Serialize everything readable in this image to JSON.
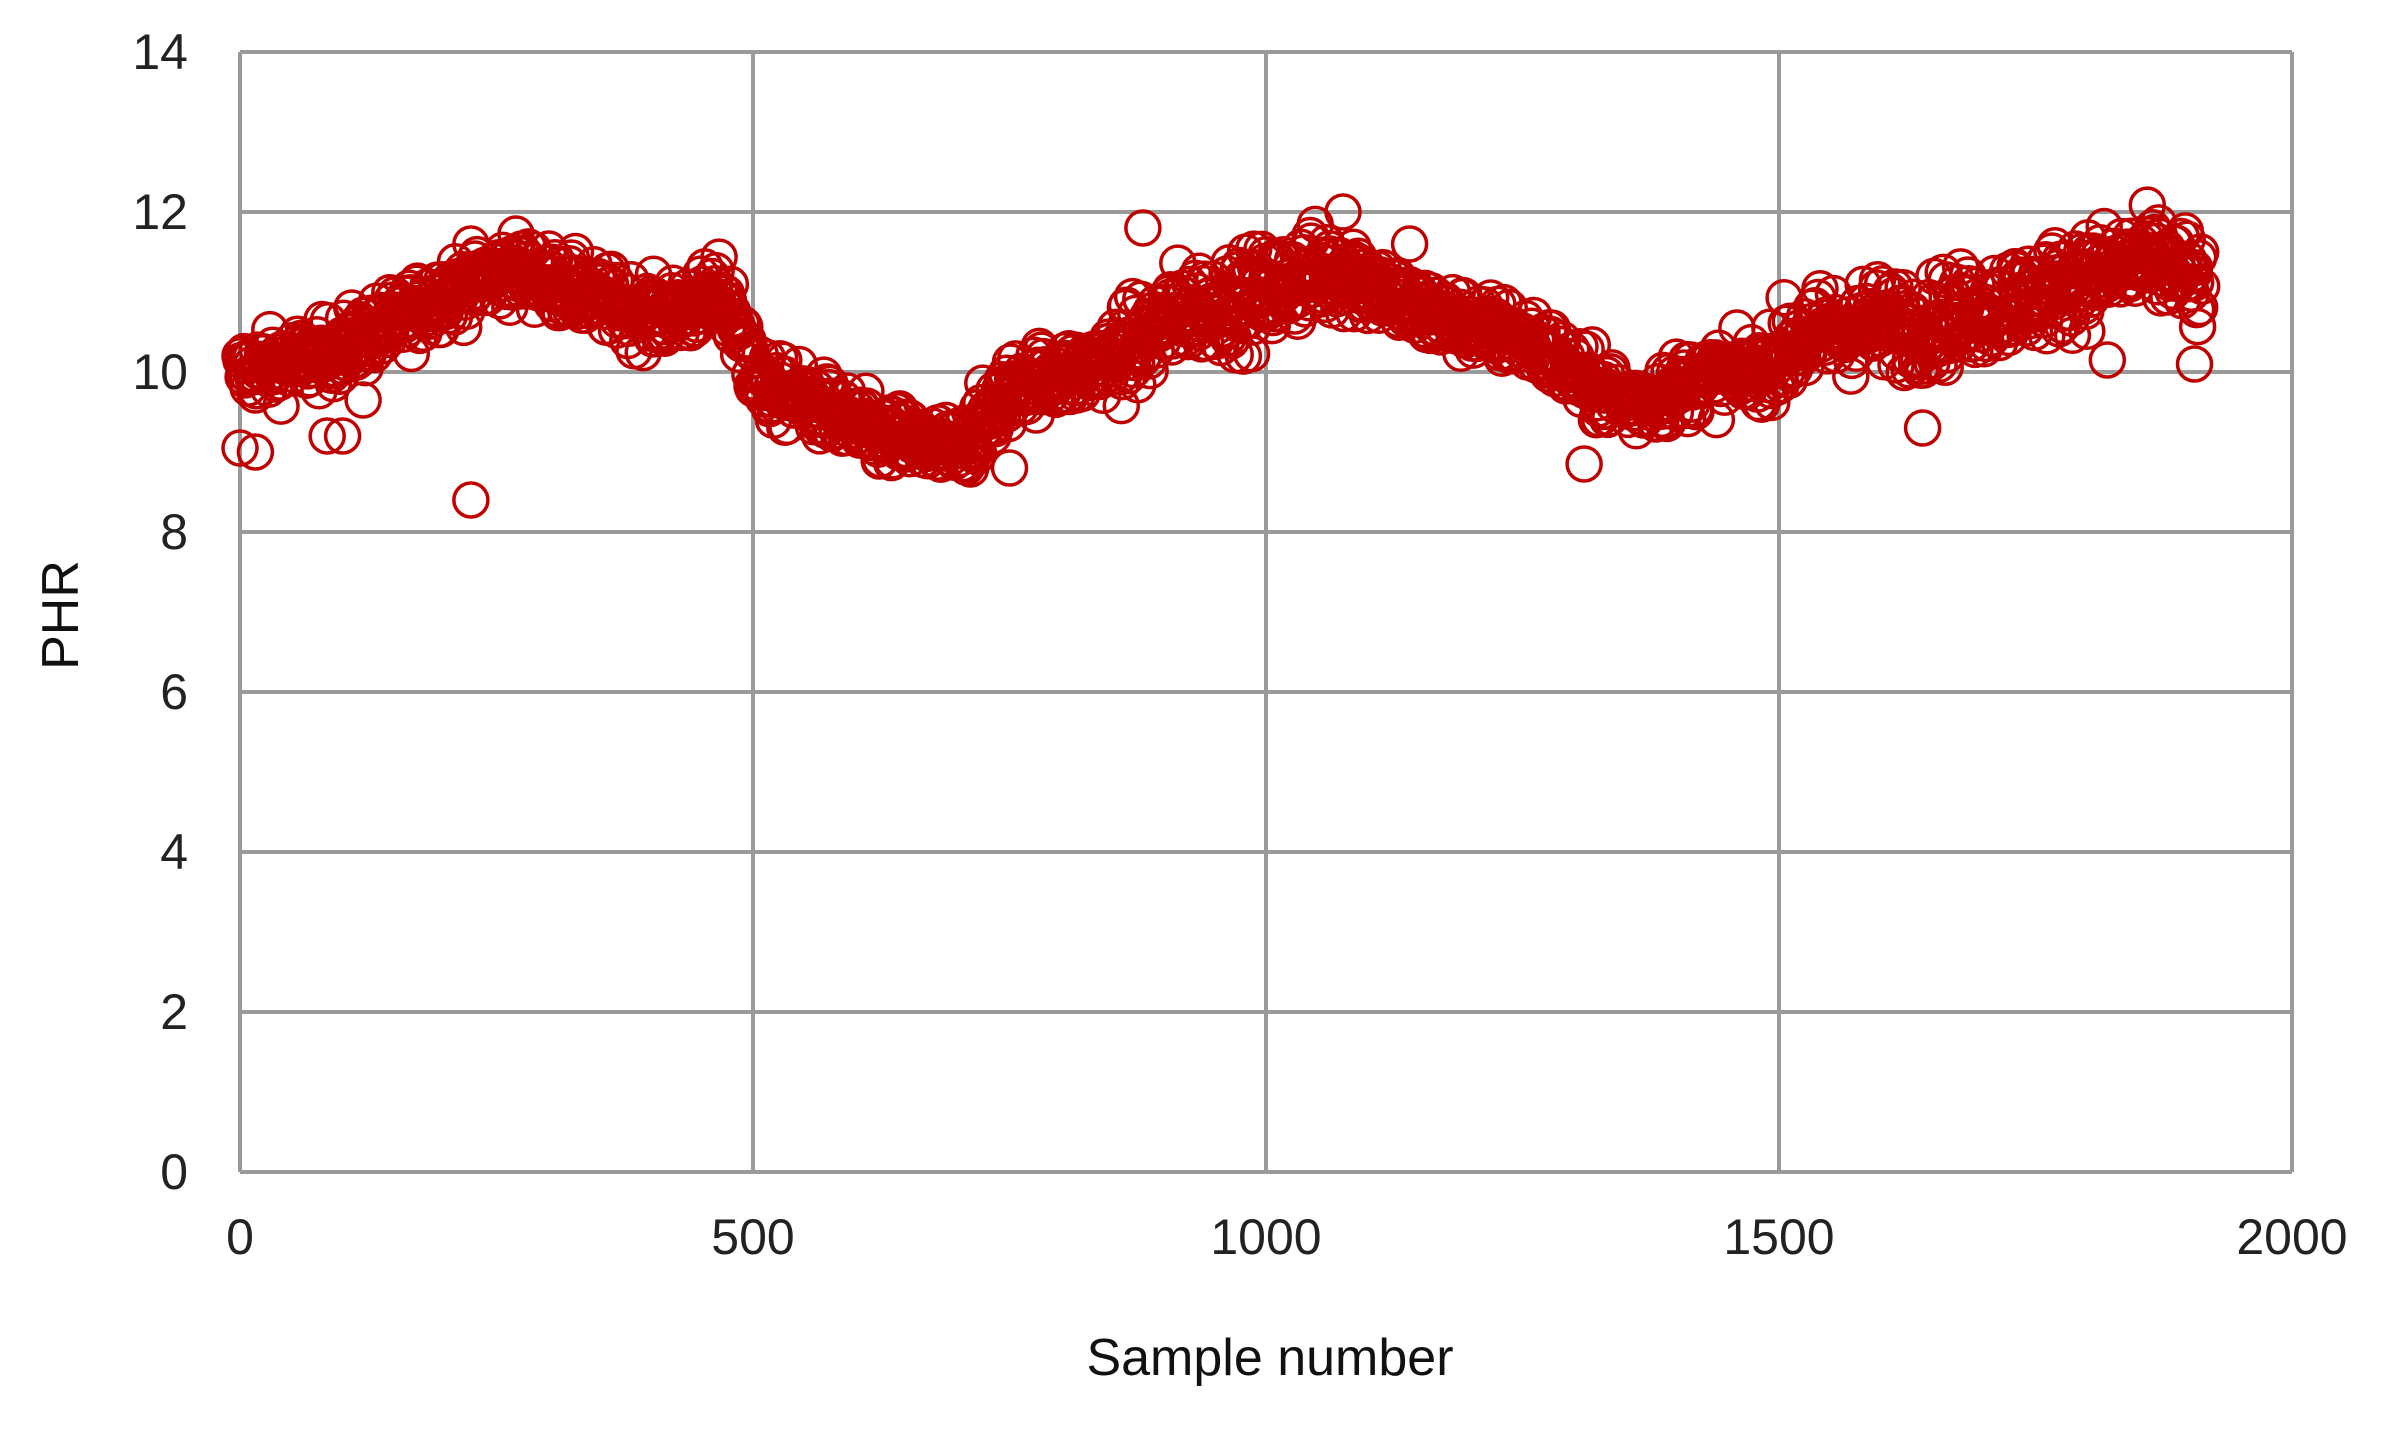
{
  "chart_data": {
    "type": "scatter",
    "title": "",
    "xlabel": "Sample number",
    "ylabel": "PHR",
    "xlim": [
      0,
      2000
    ],
    "ylim": [
      0,
      14
    ],
    "x_ticks": [
      0,
      500,
      1000,
      1500,
      2000
    ],
    "y_ticks": [
      0,
      2,
      4,
      6,
      8,
      10,
      12,
      14
    ],
    "grid": true,
    "legend": "none",
    "marker": "open-circle",
    "series_color": "#c00000",
    "trend_x": [
      0,
      80,
      150,
      200,
      270,
      330,
      400,
      440,
      470,
      510,
      560,
      620,
      660,
      700,
      760,
      820,
      870,
      920,
      980,
      1040,
      1080,
      1140,
      1200,
      1260,
      1320,
      1360,
      1420,
      1480,
      1520,
      1580,
      1640,
      1700,
      1760,
      1800,
      1860,
      1900,
      1912
    ],
    "trend_y": [
      10.0,
      10.2,
      10.6,
      11.0,
      11.3,
      11.0,
      10.7,
      10.8,
      11.0,
      9.8,
      9.6,
      9.2,
      9.1,
      9.0,
      9.9,
      10.0,
      10.3,
      10.8,
      10.9,
      11.2,
      11.3,
      10.8,
      10.6,
      10.4,
      9.8,
      9.6,
      9.9,
      10.0,
      10.4,
      10.6,
      10.6,
      10.8,
      11.0,
      11.2,
      11.4,
      11.2,
      11.0
    ],
    "outliers": [
      {
        "x": 0,
        "y": 9.05
      },
      {
        "x": 15,
        "y": 9.0
      },
      {
        "x": 85,
        "y": 9.2
      },
      {
        "x": 100,
        "y": 9.2
      },
      {
        "x": 120,
        "y": 9.65
      },
      {
        "x": 225,
        "y": 8.4
      },
      {
        "x": 880,
        "y": 11.8
      },
      {
        "x": 1075,
        "y": 12.0
      },
      {
        "x": 1140,
        "y": 11.6
      },
      {
        "x": 1310,
        "y": 8.85
      },
      {
        "x": 750,
        "y": 8.8
      },
      {
        "x": 1640,
        "y": 9.3
      },
      {
        "x": 1905,
        "y": 10.1
      },
      {
        "x": 1820,
        "y": 10.15
      }
    ]
  }
}
